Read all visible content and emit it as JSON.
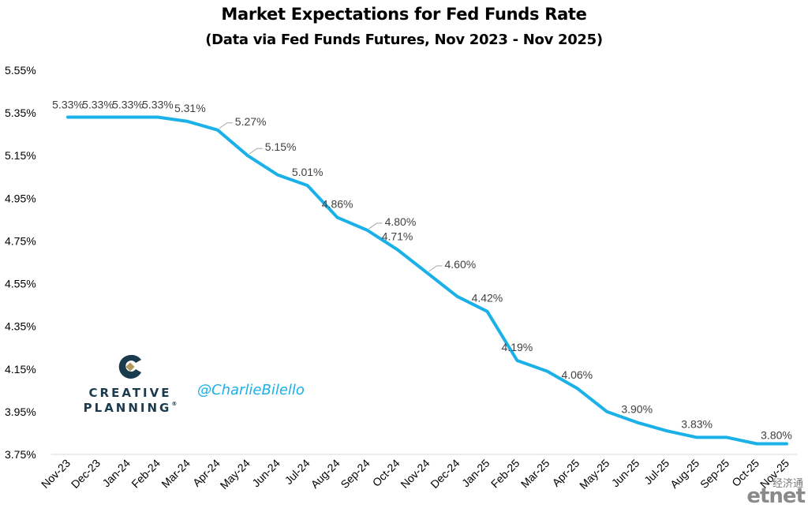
{
  "chart_data": {
    "type": "line",
    "title": "Market Expectations for Fed Funds Rate",
    "subtitle": "(Data via Fed Funds Futures, Nov 2023 - Nov 2025)",
    "xlabel": "",
    "ylabel": "",
    "ylim": [
      3.75,
      5.55
    ],
    "yticks": [
      "5.55%",
      "5.35%",
      "5.15%",
      "4.95%",
      "4.75%",
      "4.55%",
      "4.35%",
      "4.15%",
      "3.95%",
      "3.75%"
    ],
    "ytick_values": [
      5.55,
      5.35,
      5.15,
      4.95,
      4.75,
      4.55,
      4.35,
      4.15,
      3.95,
      3.75
    ],
    "grid": false,
    "line_color": "#1ab0e8",
    "categories": [
      "Nov-23",
      "Dec-23",
      "Jan-24",
      "Feb-24",
      "Mar-24",
      "Apr-24",
      "May-24",
      "Jun-24",
      "Jul-24",
      "Aug-24",
      "Sep-24",
      "Oct-24",
      "Nov-24",
      "Dec-24",
      "Jan-25",
      "Feb-25",
      "Mar-25",
      "Apr-25",
      "May-25",
      "Jun-25",
      "Jul-25",
      "Aug-25",
      "Sep-25",
      "Oct-25",
      "Nov-25"
    ],
    "values": [
      5.33,
      5.33,
      5.33,
      5.33,
      5.31,
      5.27,
      5.15,
      5.06,
      5.01,
      4.86,
      4.8,
      4.71,
      4.6,
      4.49,
      4.42,
      4.19,
      4.14,
      4.06,
      3.95,
      3.9,
      3.86,
      3.83,
      3.83,
      3.8,
      3.8
    ],
    "data_labels": [
      {
        "index": 0,
        "text": "5.33%"
      },
      {
        "index": 1,
        "text": "5.33%"
      },
      {
        "index": 2,
        "text": "5.33%"
      },
      {
        "index": 3,
        "text": "5.33%"
      },
      {
        "index": 4,
        "text": "5.31%"
      },
      {
        "index": 5,
        "text": "5.27%"
      },
      {
        "index": 6,
        "text": "5.15%"
      },
      {
        "index": 8,
        "text": "5.01%"
      },
      {
        "index": 9,
        "text": "4.86%"
      },
      {
        "index": 10,
        "text": "4.80%"
      },
      {
        "index": 11,
        "text": "4.71%"
      },
      {
        "index": 12,
        "text": "4.60%"
      },
      {
        "index": 14,
        "text": "4.42%"
      },
      {
        "index": 15,
        "text": "4.19%"
      },
      {
        "index": 17,
        "text": "4.06%"
      },
      {
        "index": 19,
        "text": "3.90%"
      },
      {
        "index": 21,
        "text": "3.83%"
      },
      {
        "index": 24,
        "text": "3.80%"
      }
    ]
  },
  "branding": {
    "logo_line1": "CREATIVE",
    "logo_line2": "PLANNING",
    "logo_mark": "®",
    "handle": "@CharlieBilello",
    "watermark_cn": "经济通",
    "watermark_en": "etnet"
  },
  "colors": {
    "line": "#1ab0e8",
    "brand_navy": "#1a3a4d",
    "brand_gold": "#b59a5e",
    "handle": "#1ab0e8"
  }
}
